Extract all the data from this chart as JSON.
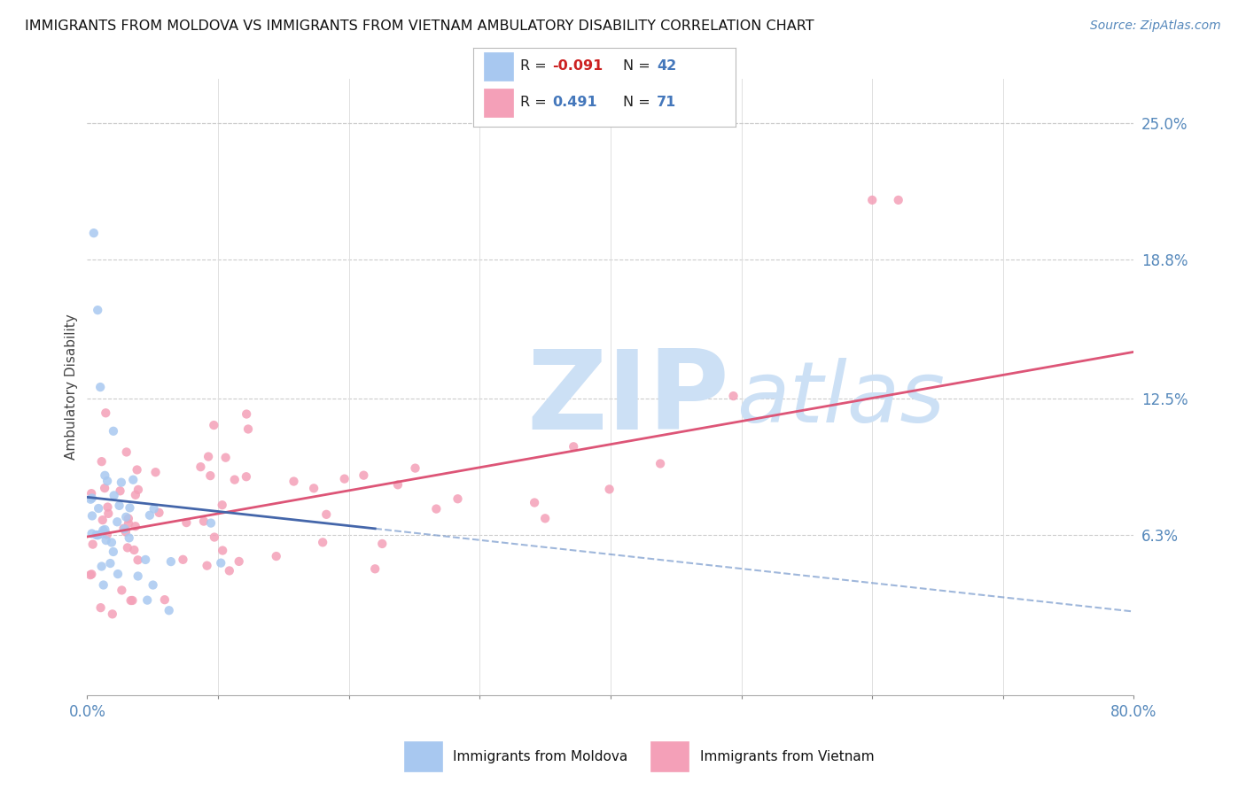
{
  "title": "IMMIGRANTS FROM MOLDOVA VS IMMIGRANTS FROM VIETNAM AMBULATORY DISABILITY CORRELATION CHART",
  "source": "Source: ZipAtlas.com",
  "ylabel": "Ambulatory Disability",
  "ytick_labels": [
    "6.3%",
    "12.5%",
    "18.8%",
    "25.0%"
  ],
  "ytick_values": [
    0.063,
    0.125,
    0.188,
    0.25
  ],
  "xlim": [
    0.0,
    0.8
  ],
  "ylim": [
    -0.01,
    0.27
  ],
  "moldova_color": "#a8c8f0",
  "vietnam_color": "#f4a0b8",
  "moldova_R": -0.091,
  "moldova_N": 42,
  "vietnam_R": 0.491,
  "vietnam_N": 71,
  "background_color": "#ffffff",
  "grid_color": "#cccccc",
  "watermark_color": "#cce0f5",
  "legend_box_color": "#f0f0f0"
}
